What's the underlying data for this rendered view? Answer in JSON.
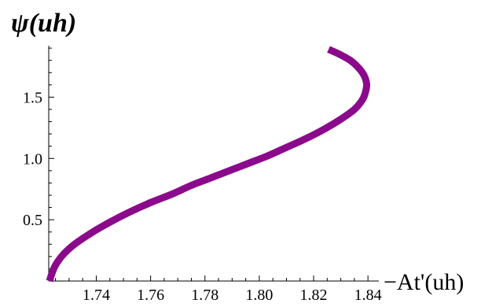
{
  "chart_data": {
    "type": "line",
    "xlabel": "−At'(uh)",
    "ylabel": "ψ(uh)",
    "xlim": [
      1.7225,
      1.844
    ],
    "ylim": [
      0.0,
      1.92
    ],
    "x_ticks": [
      "1.74",
      "1.76",
      "1.78",
      "1.80",
      "1.82",
      "1.84"
    ],
    "y_ticks": [
      "0.5",
      "1.0",
      "1.5"
    ],
    "grid": false,
    "series": [
      {
        "color": "#8b0a8b",
        "x": [
          1.7228,
          1.7235,
          1.725,
          1.728,
          1.732,
          1.738,
          1.745,
          1.752,
          1.76,
          1.768,
          1.775,
          1.782,
          1.789,
          1.796,
          1.803,
          1.81,
          1.817,
          1.824,
          1.83,
          1.835,
          1.838,
          1.8392,
          1.8395,
          1.8385,
          1.8365,
          1.8335,
          1.8295,
          1.8255
        ],
        "y": [
          0.0,
          0.05,
          0.13,
          0.22,
          0.3,
          0.39,
          0.48,
          0.56,
          0.64,
          0.71,
          0.78,
          0.84,
          0.9,
          0.96,
          1.02,
          1.09,
          1.16,
          1.24,
          1.32,
          1.4,
          1.48,
          1.55,
          1.61,
          1.68,
          1.74,
          1.8,
          1.85,
          1.89
        ]
      }
    ]
  }
}
